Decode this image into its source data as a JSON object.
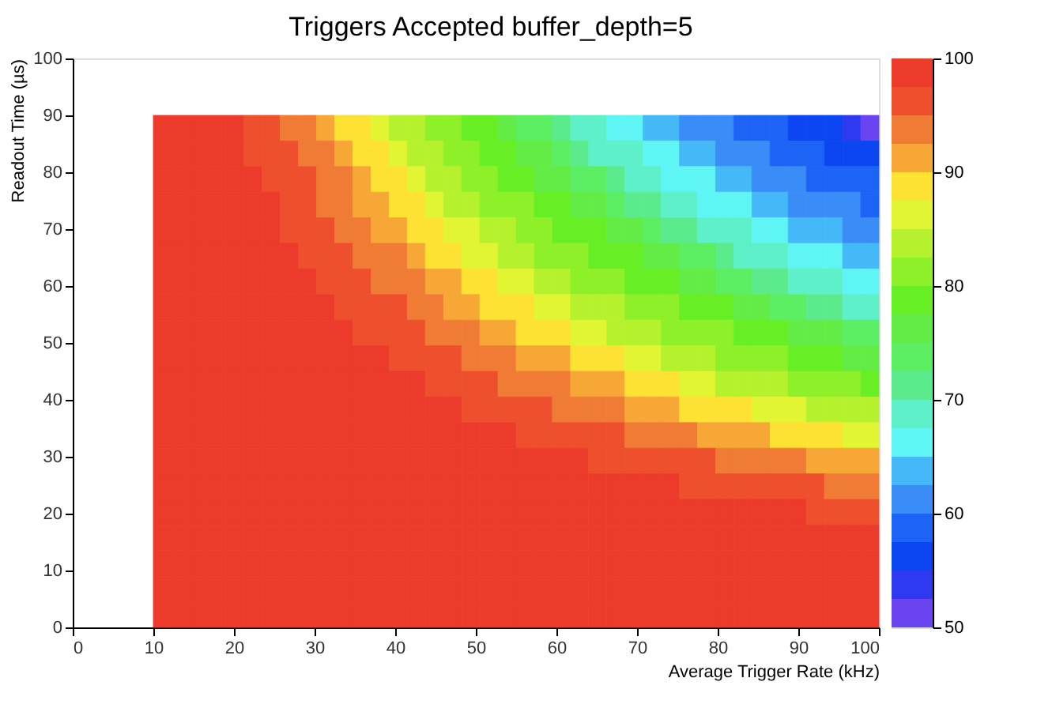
{
  "chart_data": {
    "type": "heatmap",
    "title": "Triggers Accepted buffer_depth=5",
    "xlabel": "Average Trigger Rate (kHz)",
    "ylabel": "Readout Time (µs)",
    "x": [
      11.125,
      13.375,
      15.625,
      17.875,
      20.125,
      22.375,
      24.625,
      26.875,
      29.125,
      31.375,
      33.625,
      35.875,
      38.125,
      40.375,
      42.625,
      44.875,
      47.125,
      49.375,
      51.625,
      53.875,
      56.125,
      58.375,
      60.625,
      62.875,
      65.125,
      67.375,
      69.625,
      71.875,
      74.125,
      76.375,
      78.625,
      80.875,
      83.125,
      85.375,
      87.625,
      89.875,
      92.125,
      94.375,
      96.625,
      98.875
    ],
    "y": [
      87.75,
      83.25,
      78.75,
      74.25,
      69.75,
      65.25,
      60.75,
      56.25,
      51.75,
      47.25,
      42.75,
      38.25,
      33.75,
      29.25,
      24.75,
      20.25,
      15.75,
      11.25,
      6.75,
      2.25
    ],
    "cells": [
      [
        99,
        99,
        99,
        99,
        99,
        96,
        96,
        94,
        94,
        91,
        89,
        89,
        86,
        84,
        84,
        81,
        81,
        79,
        79,
        76,
        74,
        74,
        71,
        69,
        69,
        66,
        66,
        64,
        64,
        61,
        61,
        61,
        59,
        59,
        59,
        56,
        56,
        56,
        54,
        51
      ],
      [
        99,
        99,
        99,
        99,
        99,
        96,
        96,
        96,
        94,
        94,
        91,
        89,
        89,
        86,
        84,
        84,
        81,
        81,
        79,
        79,
        76,
        76,
        74,
        71,
        69,
        69,
        69,
        66,
        66,
        64,
        64,
        61,
        61,
        61,
        59,
        59,
        59,
        56,
        56,
        56
      ],
      [
        99,
        99,
        99,
        99,
        99,
        99,
        96,
        96,
        96,
        94,
        94,
        91,
        89,
        89,
        86,
        84,
        84,
        81,
        81,
        79,
        79,
        76,
        76,
        74,
        74,
        71,
        69,
        69,
        66,
        66,
        66,
        64,
        64,
        61,
        61,
        61,
        59,
        59,
        59,
        59
      ],
      [
        99,
        99,
        99,
        99,
        99,
        99,
        99,
        96,
        96,
        94,
        94,
        91,
        91,
        89,
        89,
        86,
        84,
        84,
        81,
        81,
        81,
        79,
        79,
        76,
        76,
        74,
        71,
        71,
        69,
        69,
        66,
        66,
        66,
        64,
        64,
        61,
        61,
        61,
        61,
        59
      ],
      [
        99,
        99,
        99,
        99,
        99,
        99,
        99,
        96,
        96,
        96,
        94,
        94,
        91,
        91,
        89,
        89,
        86,
        86,
        84,
        84,
        81,
        81,
        79,
        79,
        79,
        76,
        76,
        74,
        71,
        71,
        69,
        69,
        69,
        66,
        66,
        64,
        64,
        64,
        61,
        61
      ],
      [
        99,
        99,
        99,
        99,
        99,
        99,
        99,
        99,
        96,
        96,
        96,
        94,
        94,
        94,
        91,
        89,
        89,
        86,
        86,
        84,
        84,
        81,
        81,
        81,
        79,
        79,
        79,
        76,
        76,
        74,
        74,
        71,
        69,
        69,
        69,
        66,
        66,
        66,
        64,
        64
      ],
      [
        99,
        99,
        99,
        99,
        99,
        99,
        99,
        99,
        99,
        96,
        96,
        96,
        94,
        94,
        94,
        91,
        91,
        89,
        89,
        86,
        86,
        84,
        84,
        81,
        81,
        81,
        79,
        79,
        79,
        76,
        76,
        74,
        74,
        71,
        71,
        69,
        69,
        69,
        66,
        66
      ],
      [
        99,
        99,
        99,
        99,
        99,
        99,
        99,
        99,
        99,
        99,
        96,
        96,
        96,
        96,
        94,
        94,
        91,
        91,
        89,
        89,
        89,
        86,
        86,
        84,
        84,
        84,
        81,
        81,
        81,
        79,
        79,
        79,
        76,
        76,
        74,
        74,
        71,
        71,
        69,
        69
      ],
      [
        99,
        99,
        99,
        99,
        99,
        99,
        99,
        99,
        99,
        99,
        99,
        96,
        96,
        96,
        96,
        94,
        94,
        94,
        91,
        91,
        89,
        89,
        89,
        86,
        86,
        84,
        84,
        84,
        81,
        81,
        81,
        81,
        79,
        79,
        79,
        76,
        76,
        76,
        74,
        74
      ],
      [
        99,
        99,
        99,
        99,
        99,
        99,
        99,
        99,
        99,
        99,
        99,
        99,
        99,
        96,
        96,
        96,
        96,
        94,
        94,
        94,
        91,
        91,
        91,
        89,
        89,
        89,
        86,
        86,
        84,
        84,
        84,
        81,
        81,
        81,
        81,
        79,
        79,
        79,
        76,
        76
      ],
      [
        99,
        99,
        99,
        99,
        99,
        99,
        99,
        99,
        99,
        99,
        99,
        99,
        99,
        99,
        99,
        96,
        96,
        96,
        96,
        94,
        94,
        94,
        94,
        91,
        91,
        91,
        89,
        89,
        89,
        86,
        86,
        84,
        84,
        84,
        84,
        81,
        81,
        81,
        81,
        79
      ],
      [
        99,
        99,
        99,
        99,
        99,
        99,
        99,
        99,
        99,
        99,
        99,
        99,
        99,
        99,
        99,
        99,
        99,
        96,
        96,
        96,
        96,
        96,
        94,
        94,
        94,
        94,
        91,
        91,
        91,
        89,
        89,
        89,
        89,
        86,
        86,
        86,
        84,
        84,
        84,
        84
      ],
      [
        99,
        99,
        99,
        99,
        99,
        99,
        99,
        99,
        99,
        99,
        99,
        99,
        99,
        99,
        99,
        99,
        99,
        99,
        99,
        99,
        96,
        96,
        96,
        96,
        96,
        96,
        94,
        94,
        94,
        94,
        91,
        91,
        91,
        91,
        89,
        89,
        89,
        89,
        86,
        86
      ],
      [
        99,
        99,
        99,
        99,
        99,
        99,
        99,
        99,
        99,
        99,
        99,
        99,
        99,
        99,
        99,
        99,
        99,
        99,
        99,
        99,
        99,
        99,
        99,
        99,
        96,
        96,
        96,
        96,
        96,
        96,
        96,
        94,
        94,
        94,
        94,
        94,
        91,
        91,
        91,
        91
      ],
      [
        99,
        99,
        99,
        99,
        99,
        99,
        99,
        99,
        99,
        99,
        99,
        99,
        99,
        99,
        99,
        99,
        99,
        99,
        99,
        99,
        99,
        99,
        99,
        99,
        99,
        99,
        99,
        99,
        99,
        96,
        96,
        96,
        96,
        96,
        96,
        96,
        96,
        94,
        94,
        94
      ],
      [
        99,
        99,
        99,
        99,
        99,
        99,
        99,
        99,
        99,
        99,
        99,
        99,
        99,
        99,
        99,
        99,
        99,
        99,
        99,
        99,
        99,
        99,
        99,
        99,
        99,
        99,
        99,
        99,
        99,
        99,
        99,
        99,
        99,
        99,
        99,
        99,
        96,
        96,
        96,
        96
      ],
      [
        99,
        99,
        99,
        99,
        99,
        99,
        99,
        99,
        99,
        99,
        99,
        99,
        99,
        99,
        99,
        99,
        99,
        99,
        99,
        99,
        99,
        99,
        99,
        99,
        99,
        99,
        99,
        99,
        99,
        99,
        99,
        99,
        99,
        99,
        99,
        99,
        99,
        99,
        99,
        99
      ],
      [
        99,
        99,
        99,
        99,
        99,
        99,
        99,
        99,
        99,
        99,
        99,
        99,
        99,
        99,
        99,
        99,
        99,
        99,
        99,
        99,
        99,
        99,
        99,
        99,
        99,
        99,
        99,
        99,
        99,
        99,
        99,
        99,
        99,
        99,
        99,
        99,
        99,
        99,
        99,
        99
      ],
      [
        99,
        99,
        99,
        99,
        99,
        99,
        99,
        99,
        99,
        99,
        99,
        99,
        99,
        99,
        99,
        99,
        99,
        99,
        99,
        99,
        99,
        99,
        99,
        99,
        99,
        99,
        99,
        99,
        99,
        99,
        99,
        99,
        99,
        99,
        99,
        99,
        99,
        99,
        99,
        99
      ],
      [
        99,
        99,
        99,
        99,
        99,
        99,
        99,
        99,
        99,
        99,
        99,
        99,
        99,
        99,
        99,
        99,
        99,
        99,
        99,
        99,
        99,
        99,
        99,
        99,
        99,
        99,
        99,
        99,
        99,
        99,
        99,
        99,
        99,
        99,
        99,
        99,
        99,
        99,
        99,
        99
      ]
    ],
    "colors": [
      "#6a44f0",
      "#2d3af0",
      "#0b46f2",
      "#1d63f5",
      "#3a8df7",
      "#45b9f8",
      "#5ff5f5",
      "#5ef0c8",
      "#5beb8c",
      "#5cee63",
      "#62ec45",
      "#68ee25",
      "#8ef028",
      "#b5f22d",
      "#e1f533",
      "#fde233",
      "#f6a735",
      "#f07b35",
      "#ee4f2d",
      "#ec3b2b"
    ],
    "xlim": [
      0,
      100
    ],
    "xticks": [
      0,
      10,
      20,
      30,
      40,
      50,
      60,
      70,
      80,
      90,
      100
    ],
    "ylim": [
      0,
      100
    ],
    "yticks": [
      0,
      10,
      20,
      30,
      40,
      50,
      60,
      70,
      80,
      90,
      100
    ],
    "clim": [
      50,
      100
    ],
    "cticks": [
      50,
      60,
      70,
      80,
      90,
      100
    ]
  }
}
